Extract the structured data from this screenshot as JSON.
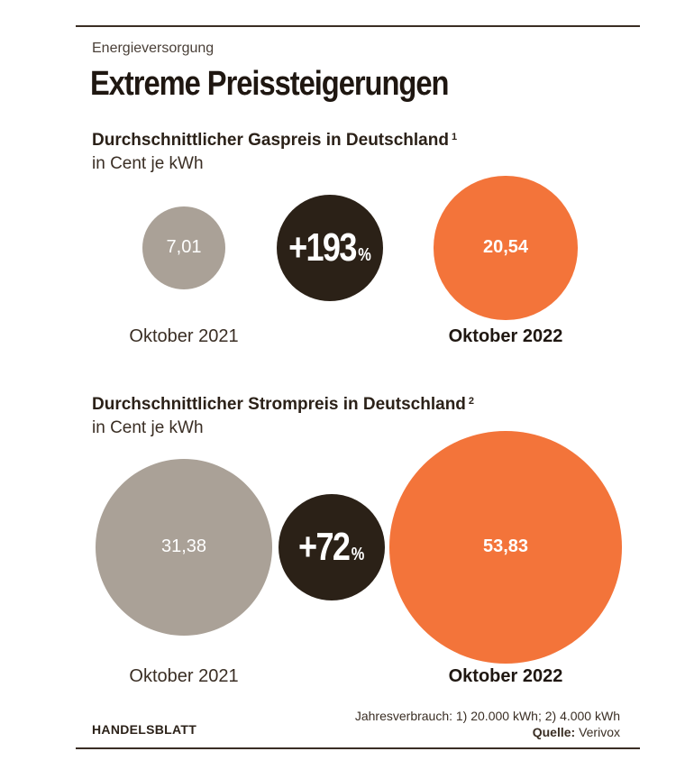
{
  "kicker": "Energieversorgung",
  "headline": "Extreme Preissteigerungen",
  "chart_data": [
    {
      "type": "bubble",
      "title": "Durchschnittlicher Gaspreis in Deutschland",
      "footnote_marker": "1",
      "unit": "in Cent je kWh",
      "categories": [
        "Oktober 2021",
        "Oktober 2022"
      ],
      "values": [
        7.01,
        20.54
      ],
      "value_labels": [
        "7,01",
        "20,54"
      ],
      "change": {
        "number": "+193",
        "unit": "%"
      },
      "colors": {
        "previous": "#aaa197",
        "current": "#f3743a",
        "change": "#2b2117"
      }
    },
    {
      "type": "bubble",
      "title": "Durchschnittlicher Strompreis in Deutschland",
      "footnote_marker": "2",
      "unit": "in Cent je kWh",
      "categories": [
        "Oktober 2021",
        "Oktober 2022"
      ],
      "values": [
        31.38,
        53.83
      ],
      "value_labels": [
        "31,38",
        "53,83"
      ],
      "change": {
        "number": "+72",
        "unit": "%"
      },
      "colors": {
        "previous": "#aaa197",
        "current": "#f3743a",
        "change": "#2b2117"
      }
    }
  ],
  "footer": {
    "brand": "HANDELSBLATT",
    "note": "Jahresverbrauch: 1) 20.000 kWh; 2) 4.000 kWh",
    "source_label": "Quelle:",
    "source": "Verivox"
  }
}
